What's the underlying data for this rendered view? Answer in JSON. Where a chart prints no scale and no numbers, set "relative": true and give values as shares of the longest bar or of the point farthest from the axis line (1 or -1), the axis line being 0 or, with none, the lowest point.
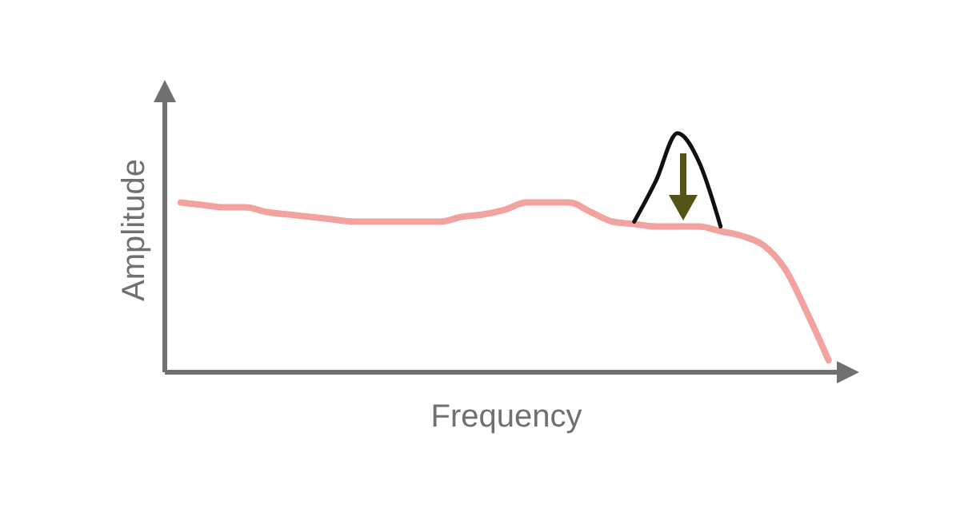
{
  "chart_data": {
    "type": "line",
    "relative": true,
    "xlabel": "Frequency",
    "ylabel": "Amplitude",
    "categories": [
      null,
      null,
      null,
      null,
      null,
      null,
      null,
      null,
      null,
      null,
      null,
      null,
      null,
      null,
      null,
      null,
      null,
      null,
      null,
      null,
      null,
      null,
      null,
      null,
      null,
      null,
      null,
      null,
      null,
      null,
      null
    ],
    "series": [
      {
        "color": "#f2a3a0",
        "values": [
          0.71,
          0.7,
          0.69,
          0.69,
          0.67,
          0.66,
          0.65,
          0.64,
          0.63,
          0.63,
          0.63,
          0.63,
          0.63,
          0.65,
          0.66,
          0.68,
          0.71,
          0.71,
          0.71,
          0.67,
          0.63,
          0.62,
          0.61,
          0.61,
          0.61,
          0.59,
          0.57,
          0.53,
          0.43,
          0.25,
          0.05
        ]
      },
      {
        "color": "#111111",
        "values": [
          null,
          null,
          null,
          null,
          null,
          null,
          null,
          null,
          null,
          null,
          null,
          null,
          null,
          null,
          null,
          null,
          null,
          null,
          null,
          null,
          null,
          0.63,
          0.8,
          1.0,
          0.88,
          0.61,
          null,
          null,
          null,
          null,
          null
        ]
      }
    ],
    "grid": false,
    "legend": false,
    "marker": "none",
    "line_style": "solid"
  }
}
